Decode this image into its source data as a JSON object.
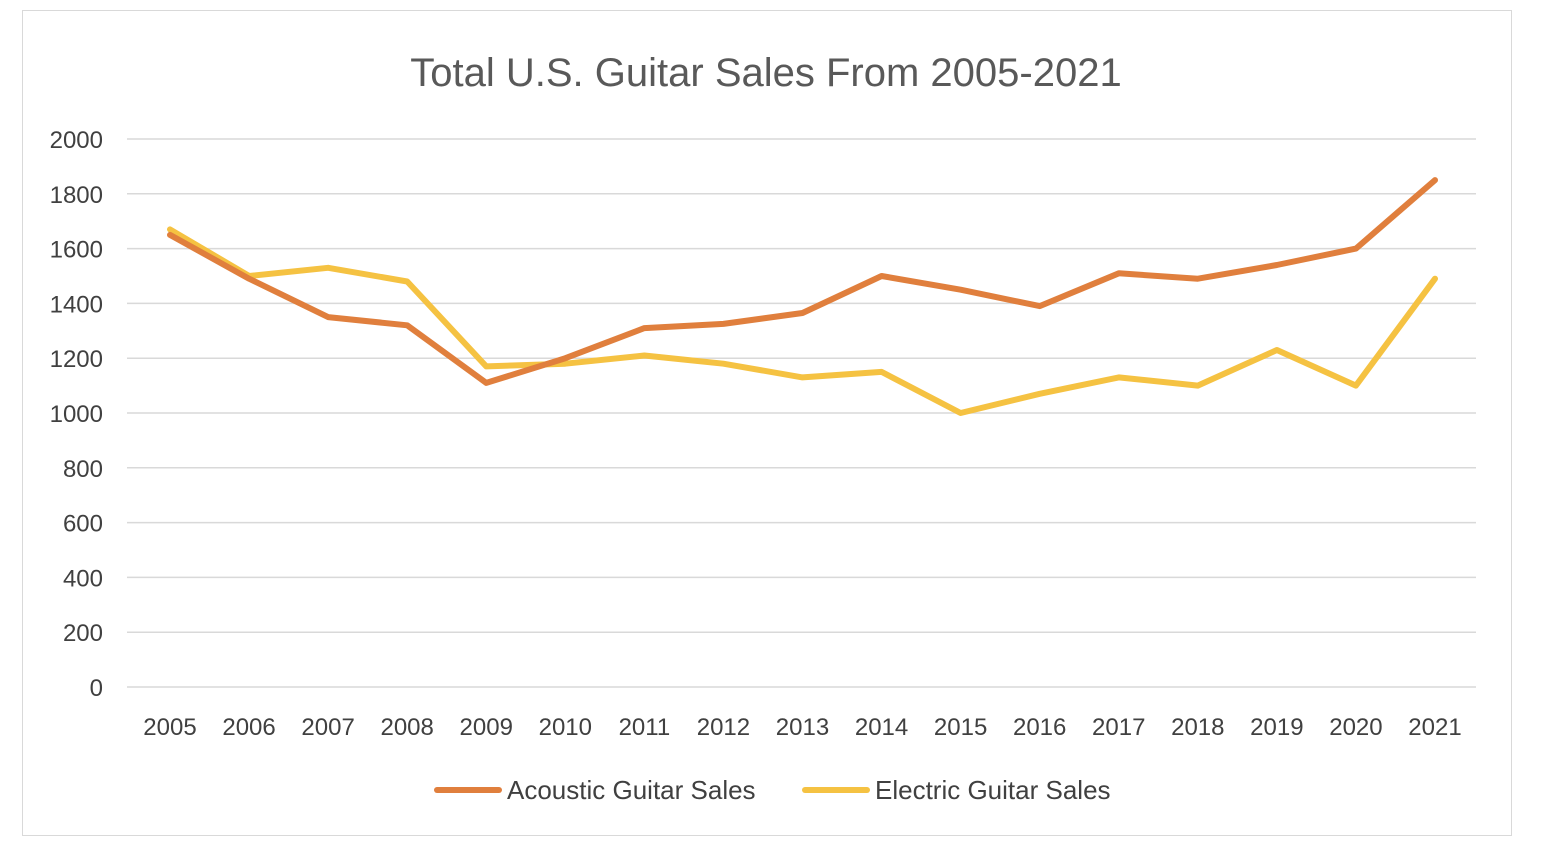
{
  "chart_data": {
    "type": "line",
    "title": "Total U.S. Guitar Sales From 2005-2021",
    "xlabel": "",
    "ylabel": "",
    "x": [
      "2005",
      "2006",
      "2007",
      "2008",
      "2009",
      "2010",
      "2011",
      "2012",
      "2013",
      "2014",
      "2015",
      "2016",
      "2017",
      "2018",
      "2019",
      "2020",
      "2021"
    ],
    "ylim": [
      0,
      2000
    ],
    "yticks": [
      0,
      200,
      400,
      600,
      800,
      1000,
      1200,
      1400,
      1600,
      1800,
      2000
    ],
    "ytick_labels": [
      "0",
      "200",
      "400",
      "600",
      "800",
      "1000",
      "1200",
      "1400",
      "1600",
      "1800",
      "2000"
    ],
    "grid": true,
    "legend_position": "bottom",
    "series": [
      {
        "name": "Acoustic Guitar Sales",
        "color": "#e07f3d",
        "values": [
          1650,
          1490,
          1350,
          1320,
          1110,
          1200,
          1310,
          1325,
          1365,
          1500,
          1450,
          1390,
          1510,
          1490,
          1540,
          1600,
          1850
        ]
      },
      {
        "name": "Electric Guitar Sales",
        "color": "#f5c242",
        "values": [
          1670,
          1500,
          1530,
          1480,
          1170,
          1180,
          1210,
          1180,
          1130,
          1150,
          1000,
          1070,
          1130,
          1100,
          1230,
          1100,
          1490
        ]
      }
    ]
  }
}
